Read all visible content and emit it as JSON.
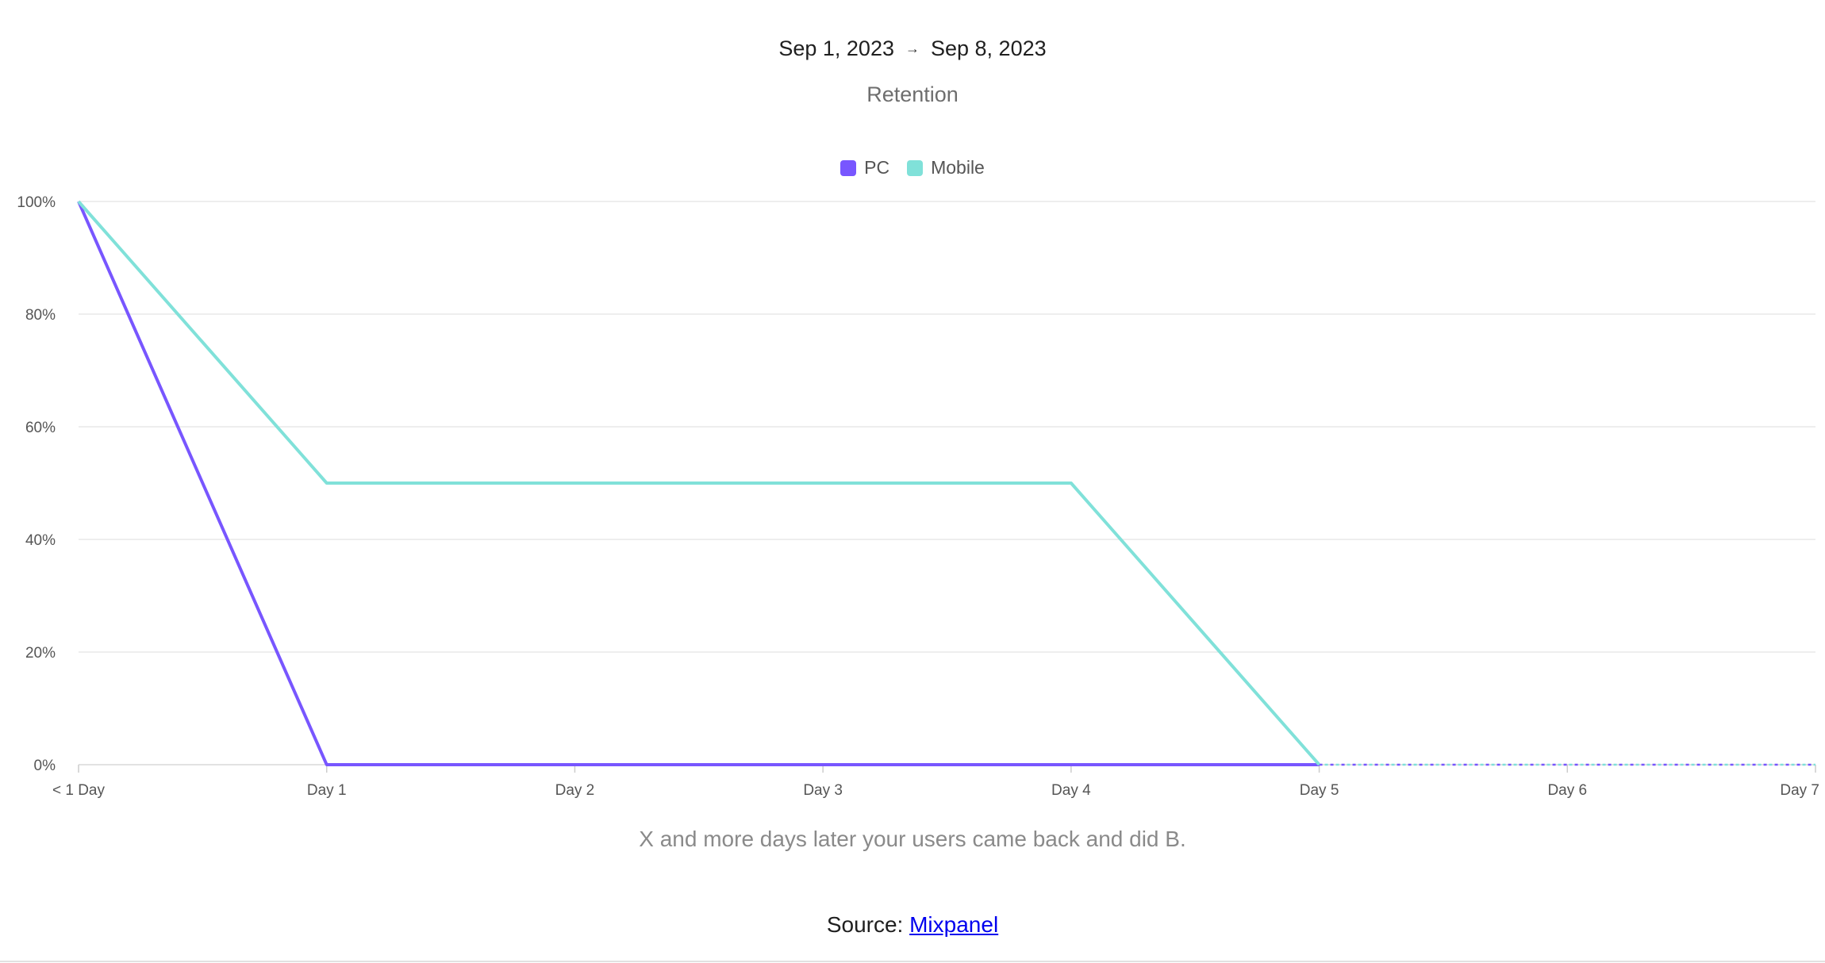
{
  "header": {
    "start_date": "Sep 1, 2023",
    "arrow": "→",
    "end_date": "Sep 8, 2023"
  },
  "chart_data": {
    "type": "line",
    "title": "Retention",
    "categories": [
      "< 1 Day",
      "Day 1",
      "Day 2",
      "Day 3",
      "Day 4",
      "Day 5",
      "Day 6",
      "Day 7"
    ],
    "series": [
      {
        "name": "PC",
        "color": "#7856ff",
        "values": [
          100,
          0,
          0,
          0,
          0,
          0,
          null,
          null
        ],
        "projected": [
          null,
          null,
          null,
          null,
          null,
          0,
          0,
          0
        ]
      },
      {
        "name": "Mobile",
        "color": "#80e1d9",
        "values": [
          100,
          50,
          50,
          50,
          50,
          0,
          null,
          null
        ],
        "projected": [
          null,
          null,
          null,
          null,
          null,
          0,
          0,
          0
        ]
      }
    ],
    "y_ticks": [
      "0%",
      "20%",
      "40%",
      "60%",
      "80%",
      "100%"
    ],
    "ylim": [
      0,
      100
    ],
    "grid": true,
    "legend_position": "top-center"
  },
  "caption": "X and more days later your users came back and did B.",
  "source": {
    "label": "Source:",
    "link_text": "Mixpanel"
  }
}
